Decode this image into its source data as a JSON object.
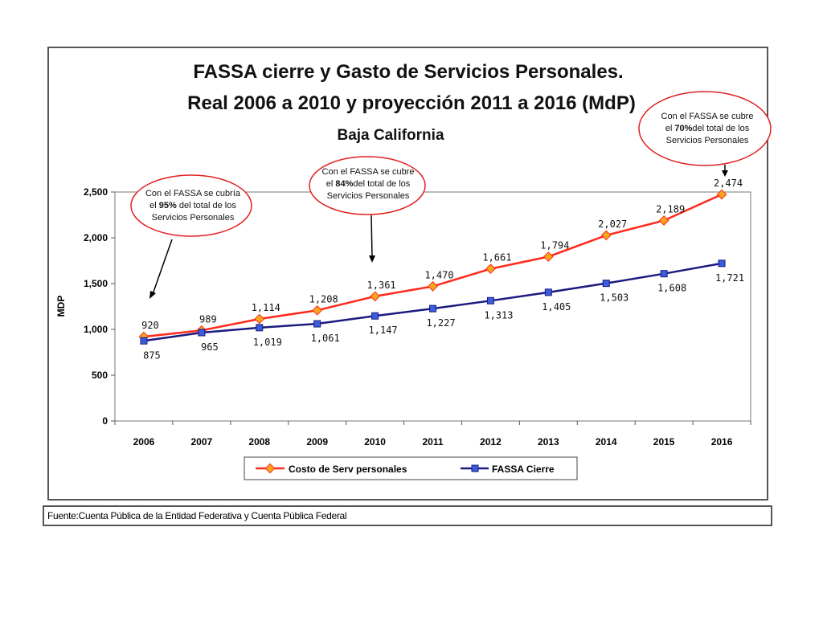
{
  "chart_data": {
    "type": "line",
    "title": "FASSA cierre y Gasto de Servicios Personales.",
    "subtitle": "Real 2006 a 2010 y proyección 2011 a 2016 (MdP)",
    "subtitle2": "Baja California",
    "xlabel": "",
    "ylabel": "MDP",
    "ylim": [
      0,
      2500
    ],
    "yticks": [
      "0",
      "500",
      "1,000",
      "1,500",
      "2,000",
      "2,500"
    ],
    "categories": [
      "2006",
      "2007",
      "2008",
      "2009",
      "2010",
      "2011",
      "2012",
      "2013",
      "2014",
      "2015",
      "2016"
    ],
    "series": [
      {
        "name": "Costo de Serv personales",
        "color": "#ff2a1a",
        "marker_color": "#f7a51e",
        "values": [
          920,
          989,
          1114,
          1208,
          1361,
          1470,
          1661,
          1794,
          2027,
          2189,
          2474
        ],
        "labels": [
          "920",
          "989",
          "1,114",
          "1,208",
          "1,361",
          "1,470",
          "1,661",
          "1,794",
          "2,027",
          "2,189",
          "2,474"
        ]
      },
      {
        "name": "FASSA Cierre",
        "color": "#1a1a80",
        "marker_color": "#3a5bdb",
        "values": [
          875,
          965,
          1019,
          1061,
          1147,
          1227,
          1313,
          1405,
          1503,
          1608,
          1721
        ],
        "labels": [
          "875",
          "965",
          "1,019",
          "1,061",
          "1,147",
          "1,227",
          "1,313",
          "1,405",
          "1,503",
          "1,608",
          "1,721"
        ]
      }
    ],
    "grid": false,
    "legend": "bottom",
    "annotations": [
      {
        "lines": [
          "Con el FASSA se cubría",
          "el 95%  del total de los",
          "Servicios Personales"
        ],
        "bold": "95%"
      },
      {
        "lines": [
          "Con el FASSA se cubre",
          "el 84%del total de los",
          "Servicios Personales"
        ],
        "bold": "84%"
      },
      {
        "lines": [
          "Con el FASSA se cubre",
          "el 70%del total de los",
          "Servicios Personales"
        ],
        "bold": "70%"
      }
    ]
  },
  "source": "Fuente:Cuenta Pública de la Entidad Federativa y  Cuenta Pública Federal"
}
